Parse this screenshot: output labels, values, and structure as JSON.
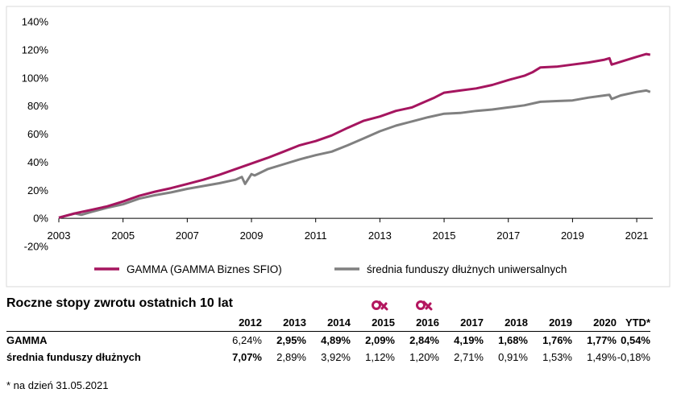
{
  "chart_data": {
    "type": "line",
    "x_ticks": [
      "2003",
      "2005",
      "2007",
      "2009",
      "2011",
      "2013",
      "2015",
      "2017",
      "2019",
      "2021"
    ],
    "y_ticks": [
      "140%",
      "120%",
      "100%",
      "80%",
      "60%",
      "40%",
      "20%",
      "0%",
      "-20%"
    ],
    "ylim": [
      -20,
      140
    ],
    "xlim": [
      2003,
      2021.5
    ],
    "grid": false,
    "legend_position": "bottom",
    "series": [
      {
        "name": "GAMMA (GAMMA Biznes SFIO)",
        "color": "#a5155f",
        "points": [
          [
            2003.0,
            0.5
          ],
          [
            2003.5,
            3.5
          ],
          [
            2004.0,
            6
          ],
          [
            2004.5,
            8.5
          ],
          [
            2005.0,
            12
          ],
          [
            2005.5,
            16
          ],
          [
            2006.0,
            19
          ],
          [
            2006.5,
            21.5
          ],
          [
            2007.0,
            24.5
          ],
          [
            2007.5,
            27.5
          ],
          [
            2008.0,
            31
          ],
          [
            2008.5,
            35
          ],
          [
            2009.0,
            39
          ],
          [
            2009.5,
            43
          ],
          [
            2010.0,
            47.5
          ],
          [
            2010.5,
            52
          ],
          [
            2011.0,
            55
          ],
          [
            2011.5,
            59
          ],
          [
            2012.0,
            64.5
          ],
          [
            2012.5,
            69.5
          ],
          [
            2013.0,
            72.5
          ],
          [
            2013.5,
            76.5
          ],
          [
            2014.0,
            79
          ],
          [
            2014.3,
            82
          ],
          [
            2014.7,
            86
          ],
          [
            2015.0,
            89.5
          ],
          [
            2015.5,
            91
          ],
          [
            2016.0,
            92.5
          ],
          [
            2016.5,
            95
          ],
          [
            2017.0,
            98.5
          ],
          [
            2017.5,
            101.5
          ],
          [
            2017.75,
            104
          ],
          [
            2018.0,
            107.5
          ],
          [
            2018.5,
            108
          ],
          [
            2019.0,
            109.5
          ],
          [
            2019.5,
            111
          ],
          [
            2020.0,
            113
          ],
          [
            2020.15,
            114
          ],
          [
            2020.22,
            109.5
          ],
          [
            2020.5,
            111.5
          ],
          [
            2021.0,
            115
          ],
          [
            2021.3,
            117
          ],
          [
            2021.42,
            116.5
          ]
        ]
      },
      {
        "name": "średnia funduszy dłużnych uniwersalnych",
        "color": "#808080",
        "points": [
          [
            2003.0,
            0.5
          ],
          [
            2003.5,
            3.5
          ],
          [
            2003.7,
            2.5
          ],
          [
            2004.0,
            4.5
          ],
          [
            2004.5,
            7.5
          ],
          [
            2005.0,
            10
          ],
          [
            2005.5,
            14
          ],
          [
            2006.0,
            16.5
          ],
          [
            2006.5,
            18.5
          ],
          [
            2007.0,
            21
          ],
          [
            2007.5,
            23
          ],
          [
            2008.0,
            25
          ],
          [
            2008.5,
            27.5
          ],
          [
            2008.7,
            29.5
          ],
          [
            2008.8,
            24.5
          ],
          [
            2009.0,
            31.5
          ],
          [
            2009.1,
            30.5
          ],
          [
            2009.5,
            35
          ],
          [
            2010.0,
            38.5
          ],
          [
            2010.5,
            42
          ],
          [
            2011.0,
            45
          ],
          [
            2011.5,
            47.5
          ],
          [
            2012.0,
            52
          ],
          [
            2012.5,
            57
          ],
          [
            2013.0,
            62
          ],
          [
            2013.5,
            66
          ],
          [
            2014.0,
            69
          ],
          [
            2014.5,
            72
          ],
          [
            2015.0,
            74.5
          ],
          [
            2015.5,
            75
          ],
          [
            2016.0,
            76.5
          ],
          [
            2016.5,
            77.5
          ],
          [
            2017.0,
            79
          ],
          [
            2017.5,
            80.5
          ],
          [
            2018.0,
            83
          ],
          [
            2018.5,
            83.5
          ],
          [
            2019.0,
            84
          ],
          [
            2019.5,
            86
          ],
          [
            2020.0,
            87.5
          ],
          [
            2020.15,
            88
          ],
          [
            2020.22,
            85
          ],
          [
            2020.5,
            87.5
          ],
          [
            2021.0,
            90
          ],
          [
            2021.3,
            91
          ],
          [
            2021.42,
            90
          ]
        ]
      }
    ]
  },
  "table": {
    "title": "Roczne stopy zwrotu ostatnich 10 lat",
    "years": [
      "2012",
      "2013",
      "2014",
      "2015",
      "2016",
      "2017",
      "2018",
      "2019",
      "2020",
      "YTD*"
    ],
    "rows": [
      {
        "name": "GAMMA",
        "values": [
          "6,24%",
          "2,95%",
          "4,89%",
          "2,09%",
          "2,84%",
          "4,19%",
          "1,68%",
          "1,76%",
          "1,77%",
          "0,54%"
        ],
        "bold": [
          false,
          true,
          true,
          true,
          true,
          true,
          true,
          true,
          true,
          true
        ]
      },
      {
        "name": "średnia funduszy dłużnych",
        "values": [
          "7,07%",
          "2,89%",
          "3,92%",
          "1,12%",
          "1,20%",
          "2,71%",
          "0,91%",
          "1,53%",
          "1,49%",
          "-0,18%"
        ],
        "bold": [
          true,
          false,
          false,
          false,
          false,
          false,
          false,
          false,
          false,
          false
        ]
      }
    ],
    "logo_years": [
      "2015",
      "2016"
    ],
    "logo_color": "#b3165f"
  },
  "footnote": "* na dzień 31.05.2021"
}
